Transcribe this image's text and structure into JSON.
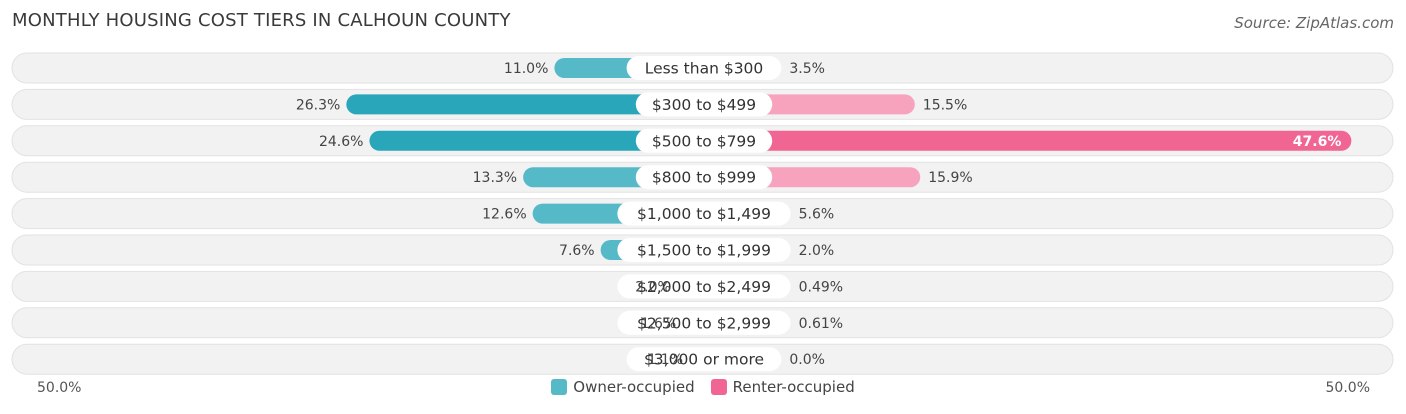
{
  "header": {
    "title": "MONTHLY HOUSING COST TIERS IN CALHOUN COUNTY",
    "source": "Source: ZipAtlas.com"
  },
  "axis": {
    "left_label": "50.0%",
    "right_label": "50.0%"
  },
  "legend": {
    "owner_label": "Owner-occupied",
    "renter_label": "Renter-occupied"
  },
  "colors": {
    "owner": "#56b9c8",
    "owner_strong": "#2aa6ba",
    "renter": "#f7a3bd",
    "renter_strong": "#f06592",
    "row_bg": "#f2f2f2"
  },
  "chart_data": {
    "type": "bar",
    "orientation": "diverging-horizontal",
    "title": "MONTHLY HOUSING COST TIERS IN CALHOUN COUNTY",
    "xlim": [
      -50,
      50
    ],
    "categories": [
      "Less than $300",
      "$300 to $499",
      "$500 to $799",
      "$800 to $999",
      "$1,000 to $1,499",
      "$1,500 to $1,999",
      "$2,000 to $2,499",
      "$2,500 to $2,999",
      "$3,000 or more"
    ],
    "series": [
      {
        "name": "Owner-occupied",
        "values": [
          11.0,
          26.3,
          24.6,
          13.3,
          12.6,
          7.6,
          2.0,
          1.6,
          1.1
        ],
        "labels": [
          "11.0%",
          "26.3%",
          "24.6%",
          "13.3%",
          "12.6%",
          "7.6%",
          "2.0%",
          "1.6%",
          "1.1%"
        ]
      },
      {
        "name": "Renter-occupied",
        "values": [
          3.5,
          15.5,
          47.6,
          15.9,
          5.6,
          2.0,
          0.49,
          0.61,
          0.0
        ],
        "labels": [
          "3.5%",
          "15.5%",
          "47.6%",
          "15.9%",
          "5.6%",
          "2.0%",
          "0.49%",
          "0.61%",
          "0.0%"
        ]
      }
    ],
    "legend_position": "bottom-center"
  }
}
